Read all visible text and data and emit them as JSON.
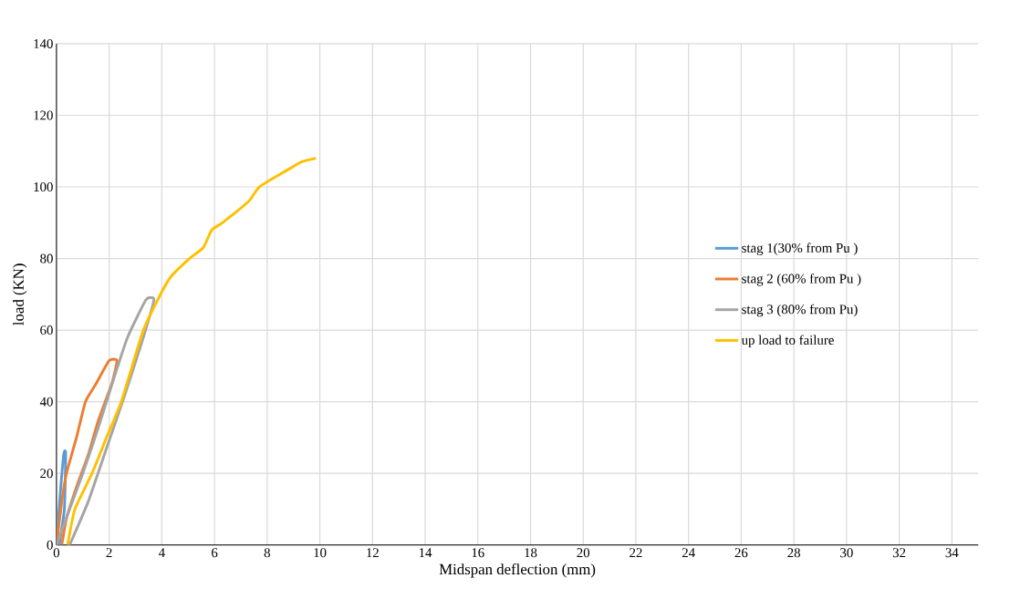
{
  "chart_data": {
    "type": "line",
    "xlabel": "Midspan deflection (mm)",
    "ylabel": "load (KN)",
    "xlim": [
      0,
      35
    ],
    "xticks": [
      0,
      2,
      4,
      6,
      8,
      10,
      12,
      14,
      16,
      18,
      20,
      22,
      24,
      26,
      28,
      30,
      32,
      34
    ],
    "ylim": [
      0,
      140
    ],
    "yticks": [
      0,
      20,
      40,
      60,
      80,
      100,
      120,
      140
    ],
    "grid": true,
    "legend": "right",
    "series": [
      {
        "name": "stag 1(30% from Pu )",
        "color": "#5b9bd5",
        "x": [
          0,
          0.15,
          0.28,
          0.35,
          0.3,
          0.1
        ],
        "values": [
          0,
          15,
          25.5,
          25.5,
          10,
          0
        ]
      },
      {
        "name": "stag 2 (60% from Pu )",
        "color": "#ed7d31",
        "x": [
          0,
          0.2,
          0.38,
          0.76,
          1.1,
          1.5,
          2.0,
          2.3,
          2.1,
          1.6,
          1.2,
          0.8,
          0.4,
          0.2
        ],
        "values": [
          0,
          12,
          20,
          30,
          40,
          45,
          51.5,
          51.5,
          45,
          35,
          25,
          17,
          8,
          0
        ]
      },
      {
        "name": "stag 3 (80% from Pu)",
        "color": "#a5a5a5",
        "x": [
          0,
          0.5,
          1.0,
          1.6,
          2.2,
          2.7,
          3.4,
          3.7,
          3.3,
          2.6,
          1.9,
          1.2,
          0.5
        ],
        "values": [
          0,
          10,
          20,
          33,
          47,
          58,
          68.5,
          68.5,
          58,
          42,
          27,
          12,
          0
        ]
      },
      {
        "name": "up load to failure",
        "color": "#ffc000",
        "x": [
          0.42,
          0.7,
          1.35,
          1.9,
          2.46,
          3.3,
          3.95,
          4.35,
          5.05,
          5.57,
          5.9,
          6.3,
          7.3,
          7.7,
          8.6,
          9.3,
          9.85
        ],
        "values": [
          0,
          10,
          20,
          30,
          40,
          60,
          70,
          75,
          80,
          83,
          88,
          90,
          96,
          100,
          104,
          107,
          108
        ]
      }
    ]
  }
}
